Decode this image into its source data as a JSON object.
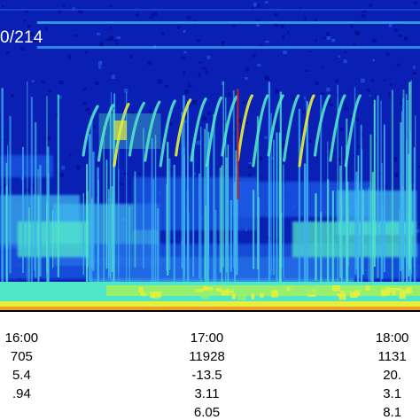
{
  "chart_data": {
    "type": "heatmap",
    "title": "",
    "panel_label": "0/214",
    "xlabel": "",
    "ylabel": "",
    "axis_rows": [
      {
        "name": "universal-time",
        "values": [
          "16:00",
          "17:00",
          "18:00"
        ]
      },
      {
        "name": "row-2",
        "values": [
          "705",
          "11928",
          "1131"
        ]
      },
      {
        "name": "row-3",
        "values": [
          "5.4",
          "-13.5",
          "20."
        ]
      },
      {
        "name": "row-4",
        "values": [
          ".94",
          "3.11",
          "3.1"
        ]
      },
      {
        "name": "row-5",
        "values": [
          "",
          "6.05",
          "8.1"
        ]
      }
    ],
    "tick_times": [
      "16:00",
      "17:00",
      "18:00"
    ],
    "x_range": [
      "15:53",
      "18:09"
    ],
    "colormap": [
      "#000a8c",
      "#0520c8",
      "#1e5ae6",
      "#3cb4f0",
      "#50e6c8",
      "#96f06e",
      "#e6f03c",
      "#f0a028",
      "#c81e1e"
    ],
    "red_marker_time": "17:10",
    "features": {
      "chorus_risers": {
        "start_times": [
          "16:20",
          "16:25",
          "16:30",
          "16:35",
          "16:40",
          "16:45",
          "16:50",
          "16:55",
          "17:00",
          "17:05",
          "17:10",
          "17:15",
          "17:20",
          "17:25",
          "17:30",
          "17:35",
          "17:40",
          "17:45"
        ]
      },
      "intense_band": {
        "from": "15:53",
        "to": "18:09"
      },
      "hiss_band": {
        "from": "15:53",
        "to": "18:09"
      },
      "top_lines": {
        "from": "16:05",
        "to": "18:09"
      }
    }
  },
  "colors": {
    "background": "#0a1fb4",
    "tick_color": "#000000",
    "label_color": "#ffffff",
    "marker_color": "#c81e1e"
  }
}
